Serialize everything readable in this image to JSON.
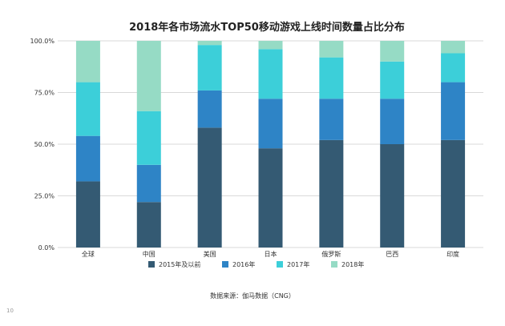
{
  "page_number": "10",
  "source_note": "数据来源：伽马数据（CNG）",
  "chart_data": {
    "type": "bar",
    "stacked": true,
    "title": "2018年各市场流水TOP50移动游戏上线时间数量占比分布",
    "categories": [
      "全球",
      "中国",
      "美国",
      "日本",
      "俄罗斯",
      "巴西",
      "印度"
    ],
    "series": [
      {
        "name": "2015年及以前",
        "color": "#345a73",
        "values": [
          32,
          22,
          58,
          48,
          52,
          50,
          52
        ]
      },
      {
        "name": "2016年",
        "color": "#2e84c6",
        "values": [
          22,
          18,
          18,
          24,
          20,
          22,
          28
        ]
      },
      {
        "name": "2017年",
        "color": "#3ccfd9",
        "values": [
          26,
          26,
          22,
          24,
          20,
          18,
          14
        ]
      },
      {
        "name": "2018年",
        "color": "#96dbc5",
        "values": [
          20,
          34,
          2,
          4,
          8,
          10,
          6
        ]
      }
    ],
    "ylim": [
      0,
      100
    ],
    "yticks": [
      "0.0%",
      "25.0%",
      "50.0%",
      "75.0%",
      "100.0%"
    ],
    "grid": true,
    "legend_position": "bottom"
  }
}
